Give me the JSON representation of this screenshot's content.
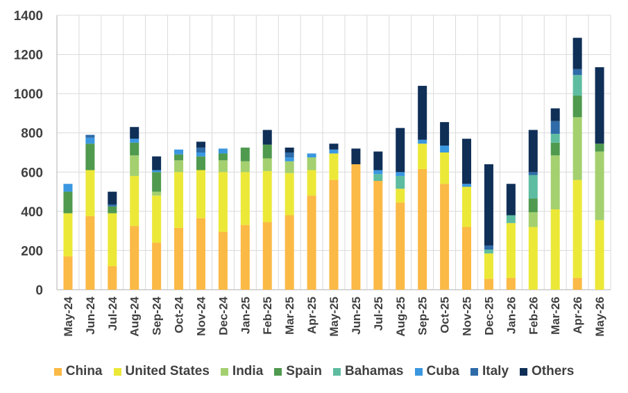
{
  "chart_data": {
    "type": "bar",
    "stacked": true,
    "categories": [
      "May-24",
      "Jun-24",
      "Jul-24",
      "Aug-24",
      "Sep-24",
      "Oct-24",
      "Nov-24",
      "Dec-24",
      "Jan-25",
      "Feb-25",
      "Mar-25",
      "Apr-25",
      "May-25",
      "Jun-25",
      "Jul-25",
      "Aug-25",
      "Sep-25",
      "Oct-25",
      "Nov-25",
      "Dec-25",
      "Jan-26",
      "Feb-26",
      "Mar-26",
      "Apr-26",
      "May-26"
    ],
    "series": [
      {
        "name": "China",
        "color": "#fbb945",
        "values": [
          170,
          375,
          120,
          325,
          240,
          315,
          365,
          295,
          330,
          345,
          380,
          480,
          560,
          640,
          555,
          445,
          615,
          540,
          320,
          55,
          60,
          0,
          0,
          60,
          0
        ]
      },
      {
        "name": "United States",
        "color": "#ece838",
        "values": [
          220,
          235,
          270,
          255,
          240,
          285,
          245,
          305,
          270,
          260,
          215,
          130,
          135,
          0,
          0,
          70,
          130,
          160,
          205,
          130,
          280,
          320,
          410,
          500,
          355
        ]
      },
      {
        "name": "India",
        "color": "#a4d06f",
        "values": [
          0,
          0,
          0,
          105,
          20,
          60,
          0,
          60,
          55,
          65,
          60,
          65,
          0,
          0,
          0,
          0,
          0,
          0,
          0,
          0,
          0,
          75,
          275,
          320,
          350
        ]
      },
      {
        "name": "Spain",
        "color": "#4f9a4e",
        "values": [
          110,
          135,
          35,
          65,
          100,
          30,
          70,
          35,
          70,
          70,
          0,
          0,
          0,
          0,
          0,
          0,
          0,
          0,
          0,
          0,
          0,
          70,
          65,
          110,
          40
        ]
      },
      {
        "name": "Bahamas",
        "color": "#5ebca0",
        "values": [
          0,
          0,
          0,
          0,
          0,
          0,
          0,
          0,
          0,
          0,
          0,
          0,
          0,
          0,
          35,
          65,
          0,
          0,
          0,
          20,
          40,
          120,
          45,
          105,
          0
        ]
      },
      {
        "name": "Cuba",
        "color": "#3a97e0",
        "values": [
          40,
          30,
          0,
          20,
          10,
          25,
          20,
          25,
          0,
          0,
          20,
          20,
          20,
          0,
          20,
          20,
          20,
          35,
          15,
          0,
          0,
          0,
          0,
          0,
          0
        ]
      },
      {
        "name": "Italy",
        "color": "#2e6ba8",
        "values": [
          0,
          15,
          10,
          0,
          0,
          0,
          25,
          0,
          0,
          0,
          25,
          0,
          0,
          0,
          0,
          0,
          0,
          0,
          0,
          20,
          0,
          15,
          65,
          30,
          0
        ]
      },
      {
        "name": "Others",
        "color": "#0f2f57",
        "values": [
          0,
          0,
          65,
          60,
          70,
          0,
          30,
          0,
          0,
          75,
          25,
          0,
          30,
          80,
          95,
          225,
          275,
          120,
          230,
          415,
          160,
          215,
          65,
          160,
          390
        ]
      }
    ],
    "ylim": [
      0,
      1400
    ],
    "yticks": [
      0,
      200,
      400,
      600,
      800,
      1000,
      1200,
      1400
    ],
    "grid": true,
    "legend_position": "bottom",
    "title": "",
    "xlabel": "",
    "ylabel": ""
  }
}
